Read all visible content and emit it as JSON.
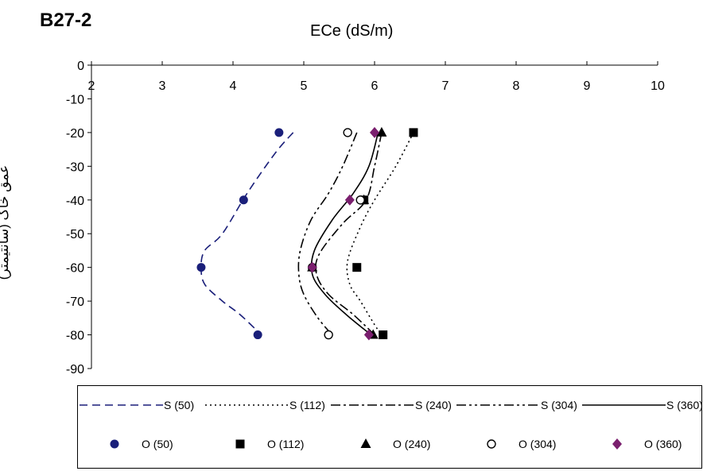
{
  "chart_data": {
    "type": "line",
    "panel_label": "B27-2",
    "xlabel": "ECe (dS/m)",
    "ylabel": "عمق خاک (سانتیمتر)",
    "xlim": [
      2,
      10
    ],
    "ylim": [
      -90,
      0
    ],
    "x_ticks": [
      2,
      3,
      4,
      5,
      6,
      7,
      8,
      9,
      10
    ],
    "y_ticks": [
      0,
      -10,
      -20,
      -30,
      -40,
      -50,
      -60,
      -70,
      -80,
      -90
    ],
    "x_axis_position": "top",
    "grid": false,
    "legend_position": "bottom",
    "series": [
      {
        "name": "S (50)",
        "kind": "line",
        "dash": "10,6",
        "color": "#1a1f7a",
        "points": [
          [
            4.85,
            -20
          ],
          [
            4.6,
            -26
          ],
          [
            4.2,
            -38
          ],
          [
            3.85,
            -50
          ],
          [
            3.6,
            -55
          ],
          [
            3.55,
            -60
          ],
          [
            3.6,
            -65
          ],
          [
            3.85,
            -70
          ],
          [
            4.1,
            -74
          ],
          [
            4.4,
            -80
          ]
        ]
      },
      {
        "name": "S (112)",
        "kind": "line",
        "dash": "2,4",
        "color": "#000000",
        "points": [
          [
            6.55,
            -20
          ],
          [
            6.3,
            -30
          ],
          [
            6.0,
            -40
          ],
          [
            5.8,
            -48
          ],
          [
            5.62,
            -58
          ],
          [
            5.65,
            -65
          ],
          [
            5.8,
            -70
          ],
          [
            6.0,
            -77
          ],
          [
            6.1,
            -80
          ]
        ]
      },
      {
        "name": "S (240)",
        "kind": "line",
        "dash": "12,4,3,4",
        "color": "#000000",
        "points": [
          [
            6.1,
            -20
          ],
          [
            6.0,
            -30
          ],
          [
            5.88,
            -40
          ],
          [
            5.55,
            -47
          ],
          [
            5.22,
            -56
          ],
          [
            5.18,
            -62
          ],
          [
            5.35,
            -68
          ],
          [
            5.7,
            -74
          ],
          [
            6.0,
            -80
          ]
        ]
      },
      {
        "name": "S (304)",
        "kind": "line",
        "dash": "12,4,3,4,3,4",
        "color": "#000000",
        "points": [
          [
            5.75,
            -20
          ],
          [
            5.55,
            -30
          ],
          [
            5.35,
            -38
          ],
          [
            5.1,
            -46
          ],
          [
            4.95,
            -55
          ],
          [
            4.93,
            -62
          ],
          [
            5.0,
            -68
          ],
          [
            5.2,
            -75
          ],
          [
            5.4,
            -80
          ]
        ]
      },
      {
        "name": "S (360)",
        "kind": "line",
        "dash": "",
        "color": "#000000",
        "points": [
          [
            6.05,
            -20
          ],
          [
            5.92,
            -30
          ],
          [
            5.7,
            -38
          ],
          [
            5.4,
            -46
          ],
          [
            5.15,
            -55
          ],
          [
            5.12,
            -62
          ],
          [
            5.3,
            -68
          ],
          [
            5.6,
            -74
          ],
          [
            5.95,
            -80
          ]
        ]
      },
      {
        "name": "O (50)",
        "kind": "marker",
        "marker": "circle",
        "color": "#1a1f7a",
        "points": [
          [
            4.65,
            -20
          ],
          [
            4.15,
            -40
          ],
          [
            3.55,
            -60
          ],
          [
            4.35,
            -80
          ]
        ]
      },
      {
        "name": "O (112)",
        "kind": "marker",
        "marker": "square",
        "color": "#000000",
        "points": [
          [
            6.55,
            -20
          ],
          [
            5.85,
            -40
          ],
          [
            5.75,
            -60
          ],
          [
            6.12,
            -80
          ]
        ]
      },
      {
        "name": "O (240)",
        "kind": "marker",
        "marker": "triangle",
        "color": "#000000",
        "points": [
          [
            6.1,
            -20
          ],
          [
            5.85,
            -40
          ],
          [
            5.12,
            -60
          ],
          [
            5.98,
            -80
          ]
        ]
      },
      {
        "name": "O (304)",
        "kind": "marker",
        "marker": "open-circle",
        "color": "#000000",
        "points": [
          [
            5.62,
            -20
          ],
          [
            5.8,
            -40
          ],
          [
            5.12,
            -60
          ],
          [
            5.35,
            -80
          ]
        ]
      },
      {
        "name": "O (360)",
        "kind": "marker",
        "marker": "diamond",
        "color": "#7a1f6e",
        "points": [
          [
            6.0,
            -20
          ],
          [
            5.65,
            -40
          ],
          [
            5.12,
            -60
          ],
          [
            5.92,
            -80
          ]
        ]
      }
    ]
  }
}
